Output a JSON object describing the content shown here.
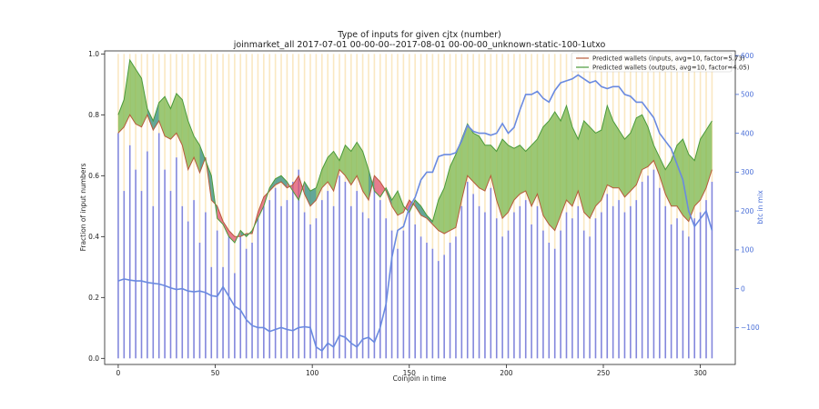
{
  "chart_data": {
    "type": "line",
    "title": "Type of inputs for given cjtx (number)",
    "subtitle": "joinmarket_all 2017-07-01 00-00-00--2017-08-01 00-00-00_unknown-static-100-1utxo",
    "xlabel": "Coinjoin in time",
    "ylabel": "Fraction of input numbers",
    "y2label": "btc in mix",
    "xlim": [
      -7,
      318
    ],
    "ylim": [
      -0.02,
      1.01
    ],
    "y2lim": [
      -195,
      612
    ],
    "x_ticks": [
      0,
      50,
      100,
      150,
      200,
      250,
      300
    ],
    "y_ticks": [
      0.0,
      0.2,
      0.4,
      0.6,
      0.8,
      1.0
    ],
    "y2_ticks": [
      -100,
      0,
      100,
      200,
      300,
      400,
      500,
      600
    ],
    "legend_position": "top-right",
    "grid": false,
    "colors": {
      "inputs_line": "#b85a3a",
      "outputs_line": "#4a9a3a",
      "btc_line": "#6a8ae0",
      "bars": "#6d72d6",
      "bar_top": "#f5d590",
      "fill_outputs_above": "#7ab648",
      "fill_inputs_above": "#e0506a",
      "fill_dark": "#2f8a78"
    },
    "series": [
      {
        "name": "Predicted wallets (inputs, avg=10, factor=5.73)",
        "x": [
          0,
          3,
          6,
          9,
          12,
          15,
          18,
          21,
          24,
          27,
          30,
          33,
          36,
          39,
          42,
          45,
          48,
          51,
          54,
          57,
          60,
          63,
          66,
          69,
          72,
          75,
          78,
          81,
          84,
          87,
          90,
          93,
          96,
          99,
          102,
          105,
          108,
          111,
          114,
          117,
          120,
          123,
          126,
          129,
          132,
          135,
          138,
          141,
          144,
          147,
          150,
          153,
          156,
          159,
          162,
          165,
          168,
          171,
          174,
          177,
          180,
          183,
          186,
          189,
          192,
          195,
          198,
          201,
          204,
          207,
          210,
          213,
          216,
          219,
          222,
          225,
          228,
          231,
          234,
          237,
          240,
          243,
          246,
          249,
          252,
          255,
          258,
          261,
          264,
          267,
          270,
          273,
          276,
          279,
          282,
          285,
          288,
          291,
          294,
          297,
          300,
          303,
          306
        ],
        "y": [
          0.74,
          0.76,
          0.8,
          0.77,
          0.76,
          0.8,
          0.75,
          0.78,
          0.73,
          0.72,
          0.74,
          0.7,
          0.62,
          0.66,
          0.61,
          0.66,
          0.52,
          0.5,
          0.45,
          0.42,
          0.4,
          0.4,
          0.41,
          0.41,
          0.48,
          0.53,
          0.55,
          0.57,
          0.58,
          0.56,
          0.57,
          0.6,
          0.54,
          0.5,
          0.52,
          0.56,
          0.58,
          0.55,
          0.62,
          0.6,
          0.57,
          0.6,
          0.55,
          0.52,
          0.6,
          0.58,
          0.55,
          0.5,
          0.47,
          0.48,
          0.52,
          0.5,
          0.47,
          0.46,
          0.44,
          0.42,
          0.41,
          0.42,
          0.43,
          0.52,
          0.6,
          0.58,
          0.56,
          0.55,
          0.6,
          0.52,
          0.46,
          0.48,
          0.52,
          0.54,
          0.55,
          0.5,
          0.54,
          0.47,
          0.44,
          0.42,
          0.47,
          0.52,
          0.5,
          0.55,
          0.48,
          0.46,
          0.5,
          0.52,
          0.57,
          0.56,
          0.56,
          0.53,
          0.55,
          0.57,
          0.62,
          0.63,
          0.65,
          0.6,
          0.54,
          0.5,
          0.5,
          0.47,
          0.45,
          0.5,
          0.52,
          0.56,
          0.62
        ]
      },
      {
        "name": "Predicted wallets (outputs, avg=10, factor=4.05)",
        "x": [
          0,
          3,
          6,
          9,
          12,
          15,
          18,
          21,
          24,
          27,
          30,
          33,
          36,
          39,
          42,
          45,
          48,
          51,
          54,
          57,
          60,
          63,
          66,
          69,
          72,
          75,
          78,
          81,
          84,
          87,
          90,
          93,
          96,
          99,
          102,
          105,
          108,
          111,
          114,
          117,
          120,
          123,
          126,
          129,
          132,
          135,
          138,
          141,
          144,
          147,
          150,
          153,
          156,
          159,
          162,
          165,
          168,
          171,
          174,
          177,
          180,
          183,
          186,
          189,
          192,
          195,
          198,
          201,
          204,
          207,
          210,
          213,
          216,
          219,
          222,
          225,
          228,
          231,
          234,
          237,
          240,
          243,
          246,
          249,
          252,
          255,
          258,
          261,
          264,
          267,
          270,
          273,
          276,
          279,
          282,
          285,
          288,
          291,
          294,
          297,
          300,
          303,
          306
        ],
        "y": [
          0.8,
          0.85,
          0.98,
          0.95,
          0.92,
          0.82,
          0.78,
          0.84,
          0.86,
          0.82,
          0.87,
          0.85,
          0.78,
          0.73,
          0.7,
          0.65,
          0.6,
          0.46,
          0.44,
          0.4,
          0.38,
          0.42,
          0.4,
          0.42,
          0.46,
          0.5,
          0.56,
          0.59,
          0.6,
          0.58,
          0.55,
          0.52,
          0.58,
          0.55,
          0.56,
          0.62,
          0.66,
          0.68,
          0.65,
          0.7,
          0.68,
          0.71,
          0.68,
          0.62,
          0.55,
          0.53,
          0.56,
          0.52,
          0.55,
          0.5,
          0.48,
          0.52,
          0.5,
          0.47,
          0.45,
          0.52,
          0.56,
          0.63,
          0.67,
          0.72,
          0.77,
          0.74,
          0.73,
          0.7,
          0.7,
          0.68,
          0.72,
          0.7,
          0.69,
          0.7,
          0.68,
          0.7,
          0.72,
          0.76,
          0.78,
          0.81,
          0.78,
          0.83,
          0.76,
          0.72,
          0.78,
          0.76,
          0.74,
          0.75,
          0.83,
          0.78,
          0.75,
          0.72,
          0.74,
          0.79,
          0.8,
          0.76,
          0.7,
          0.66,
          0.62,
          0.65,
          0.7,
          0.72,
          0.67,
          0.65,
          0.72,
          0.75,
          0.78
        ]
      },
      {
        "name": "btc in mix",
        "axis": "right",
        "x": [
          0,
          3,
          6,
          9,
          12,
          15,
          18,
          21,
          24,
          27,
          30,
          33,
          36,
          39,
          42,
          45,
          48,
          51,
          54,
          57,
          60,
          63,
          66,
          69,
          72,
          75,
          78,
          81,
          84,
          87,
          90,
          93,
          96,
          99,
          102,
          105,
          108,
          111,
          114,
          117,
          120,
          123,
          126,
          129,
          132,
          135,
          138,
          141,
          144,
          147,
          150,
          153,
          156,
          159,
          162,
          165,
          168,
          171,
          174,
          177,
          180,
          183,
          186,
          189,
          192,
          195,
          198,
          201,
          204,
          207,
          210,
          213,
          216,
          219,
          222,
          225,
          228,
          231,
          234,
          237,
          240,
          243,
          246,
          249,
          252,
          255,
          258,
          261,
          264,
          267,
          270,
          273,
          276,
          279,
          282,
          285,
          288,
          291,
          294,
          297,
          300,
          303,
          306
        ],
        "y": [
          20,
          25,
          22,
          20,
          20,
          16,
          14,
          12,
          8,
          2,
          -2,
          0,
          -6,
          -8,
          -6,
          -10,
          -18,
          -20,
          5,
          -20,
          -45,
          -55,
          -80,
          -95,
          -100,
          -100,
          -110,
          -105,
          -100,
          -105,
          -108,
          -100,
          -98,
          -100,
          -150,
          -160,
          -140,
          -150,
          -120,
          -125,
          -140,
          -150,
          -130,
          -125,
          -138,
          -100,
          -40,
          80,
          150,
          160,
          210,
          235,
          280,
          300,
          300,
          340,
          345,
          345,
          350,
          380,
          420,
          405,
          400,
          400,
          395,
          400,
          425,
          400,
          415,
          460,
          500,
          500,
          508,
          490,
          480,
          510,
          530,
          535,
          540,
          550,
          540,
          530,
          535,
          520,
          515,
          520,
          520,
          500,
          495,
          480,
          480,
          460,
          440,
          400,
          380,
          360,
          320,
          280,
          200,
          160,
          180,
          200,
          150
        ]
      }
    ],
    "bars": {
      "x": [
        0,
        3,
        6,
        9,
        12,
        15,
        18,
        21,
        24,
        27,
        30,
        33,
        36,
        39,
        42,
        45,
        48,
        51,
        54,
        57,
        60,
        63,
        66,
        69,
        72,
        75,
        78,
        81,
        84,
        87,
        90,
        93,
        96,
        99,
        102,
        105,
        108,
        111,
        114,
        117,
        120,
        123,
        126,
        129,
        132,
        135,
        138,
        141,
        144,
        147,
        150,
        153,
        156,
        159,
        162,
        165,
        168,
        171,
        174,
        177,
        180,
        183,
        186,
        189,
        192,
        195,
        198,
        201,
        204,
        207,
        210,
        213,
        216,
        219,
        222,
        225,
        228,
        231,
        234,
        237,
        240,
        243,
        246,
        249,
        252,
        255,
        258,
        261,
        264,
        267,
        270,
        273,
        276,
        279,
        282,
        285,
        288,
        291,
        294,
        297,
        300,
        303,
        306
      ],
      "y": [
        0.74,
        0.55,
        0.7,
        0.62,
        0.55,
        0.68,
        0.5,
        0.74,
        0.62,
        0.55,
        0.66,
        0.5,
        0.45,
        0.52,
        0.38,
        0.48,
        0.3,
        0.42,
        0.3,
        0.4,
        0.28,
        0.4,
        0.36,
        0.38,
        0.46,
        0.5,
        0.52,
        0.56,
        0.5,
        0.52,
        0.58,
        0.62,
        0.48,
        0.44,
        0.46,
        0.52,
        0.55,
        0.5,
        0.6,
        0.58,
        0.5,
        0.55,
        0.48,
        0.46,
        0.56,
        0.52,
        0.46,
        0.42,
        0.36,
        0.42,
        0.48,
        0.44,
        0.4,
        0.38,
        0.36,
        0.32,
        0.34,
        0.38,
        0.4,
        0.5,
        0.58,
        0.54,
        0.5,
        0.48,
        0.56,
        0.46,
        0.4,
        0.42,
        0.48,
        0.5,
        0.52,
        0.44,
        0.5,
        0.42,
        0.38,
        0.36,
        0.42,
        0.48,
        0.46,
        0.5,
        0.42,
        0.4,
        0.46,
        0.48,
        0.54,
        0.5,
        0.52,
        0.48,
        0.5,
        0.52,
        0.58,
        0.6,
        0.62,
        0.56,
        0.5,
        0.44,
        0.46,
        0.42,
        0.4,
        0.46,
        0.48,
        0.52,
        0.58
      ]
    }
  }
}
